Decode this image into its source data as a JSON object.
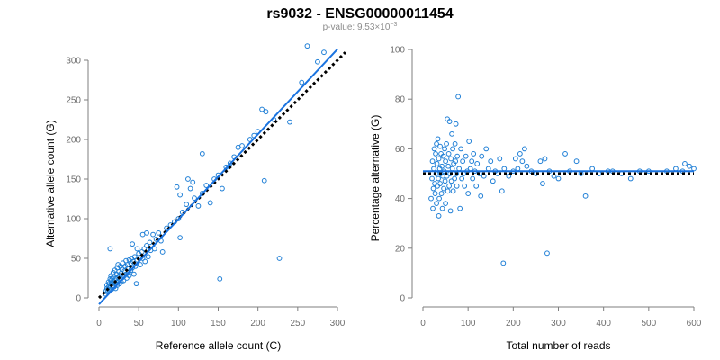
{
  "figure": {
    "title": "rs9032 - ENSG00000011454",
    "pvalue_prefix": "p-value: 9.53×10",
    "pvalue_exponent": "−3"
  },
  "colors": {
    "points": "#1f7fd6",
    "fit": "#1a73e0",
    "reference": "#000000",
    "axes": "#7f7f7f",
    "ticks": "#6e6e6e"
  },
  "chart_data": [
    {
      "type": "scatter",
      "title": "",
      "xlabel": "Reference allele count (C)",
      "ylabel": "Alternative allele count (G)",
      "xlim": [
        0,
        300
      ],
      "ylim": [
        0,
        300
      ],
      "xticks": [
        0,
        50,
        100,
        150,
        200,
        250,
        300
      ],
      "yticks": [
        0,
        50,
        100,
        150,
        200,
        250,
        300
      ],
      "grid": false,
      "points": [
        [
          8,
          5
        ],
        [
          9,
          9
        ],
        [
          10,
          12
        ],
        [
          10,
          16
        ],
        [
          11,
          7
        ],
        [
          12,
          14
        ],
        [
          12,
          20
        ],
        [
          13,
          10
        ],
        [
          13,
          18
        ],
        [
          14,
          24
        ],
        [
          14,
          13
        ],
        [
          15,
          17
        ],
        [
          15,
          22
        ],
        [
          15,
          28
        ],
        [
          16,
          11
        ],
        [
          16,
          19
        ],
        [
          17,
          25
        ],
        [
          17,
          15
        ],
        [
          18,
          32
        ],
        [
          18,
          21
        ],
        [
          19,
          14
        ],
        [
          19,
          27
        ],
        [
          20,
          18
        ],
        [
          20,
          35
        ],
        [
          21,
          24
        ],
        [
          21,
          12
        ],
        [
          22,
          30
        ],
        [
          22,
          20
        ],
        [
          23,
          38
        ],
        [
          23,
          16
        ],
        [
          24,
          26
        ],
        [
          24,
          42
        ],
        [
          25,
          22
        ],
        [
          25,
          33
        ],
        [
          26,
          18
        ],
        [
          26,
          28
        ],
        [
          27,
          40
        ],
        [
          27,
          24
        ],
        [
          28,
          31
        ],
        [
          28,
          20
        ],
        [
          29,
          36
        ],
        [
          30,
          26
        ],
        [
          30,
          44
        ],
        [
          31,
          22
        ],
        [
          32,
          34
        ],
        [
          32,
          28
        ],
        [
          33,
          40
        ],
        [
          34,
          30
        ],
        [
          34,
          47
        ],
        [
          35,
          25
        ],
        [
          36,
          37
        ],
        [
          36,
          42
        ],
        [
          37,
          32
        ],
        [
          38,
          48
        ],
        [
          38,
          28
        ],
        [
          40,
          35
        ],
        [
          40,
          44
        ],
        [
          41,
          50
        ],
        [
          42,
          38
        ],
        [
          43,
          46
        ],
        [
          44,
          30
        ],
        [
          45,
          52
        ],
        [
          46,
          40
        ],
        [
          47,
          18
        ],
        [
          48,
          48
        ],
        [
          50,
          56
        ],
        [
          52,
          42
        ],
        [
          54,
          58
        ],
        [
          55,
          50
        ],
        [
          57,
          62
        ],
        [
          58,
          46
        ],
        [
          60,
          66
        ],
        [
          62,
          52
        ],
        [
          64,
          70
        ],
        [
          65,
          60
        ],
        [
          68,
          80
        ],
        [
          70,
          62
        ],
        [
          72,
          74
        ],
        [
          75,
          82
        ],
        [
          78,
          72
        ],
        [
          80,
          58
        ],
        [
          85,
          88
        ],
        [
          90,
          92
        ],
        [
          95,
          96
        ],
        [
          100,
          100
        ],
        [
          102,
          130
        ],
        [
          105,
          108
        ],
        [
          110,
          118
        ],
        [
          115,
          138
        ],
        [
          120,
          126
        ],
        [
          125,
          116
        ],
        [
          130,
          132
        ],
        [
          135,
          142
        ],
        [
          140,
          120
        ],
        [
          145,
          150
        ],
        [
          150,
          155
        ],
        [
          155,
          138
        ],
        [
          160,
          165
        ],
        [
          165,
          170
        ],
        [
          170,
          178
        ],
        [
          175,
          190
        ],
        [
          180,
          192
        ],
        [
          190,
          200
        ],
        [
          195,
          205
        ],
        [
          200,
          210
        ],
        [
          205,
          238
        ],
        [
          208,
          148
        ],
        [
          210,
          235
        ],
        [
          220,
          225
        ],
        [
          227,
          50
        ],
        [
          240,
          222
        ],
        [
          255,
          272
        ],
        [
          262,
          318
        ],
        [
          275,
          298
        ],
        [
          283,
          310
        ],
        [
          14,
          62
        ],
        [
          42,
          68
        ],
        [
          48,
          62
        ],
        [
          55,
          80
        ],
        [
          152,
          24
        ],
        [
          60,
          82
        ],
        [
          102,
          76
        ],
        [
          98,
          140
        ],
        [
          112,
          150
        ],
        [
          130,
          182
        ],
        [
          118,
          146
        ]
      ],
      "fit_line": {
        "x": [
          0,
          300
        ],
        "y": [
          -8,
          314
        ]
      },
      "reference_line": {
        "x": [
          0,
          310
        ],
        "y": [
          0,
          310
        ]
      }
    },
    {
      "type": "scatter",
      "title": "",
      "xlabel": "Total number of reads",
      "ylabel": "Percentage alternative (G)",
      "xlim": [
        0,
        600
      ],
      "ylim": [
        0,
        100
      ],
      "xticks": [
        0,
        100,
        200,
        300,
        400,
        500,
        600
      ],
      "yticks": [
        0,
        20,
        40,
        60,
        80,
        100
      ],
      "grid": false,
      "points": [
        [
          18,
          40
        ],
        [
          20,
          48
        ],
        [
          21,
          55
        ],
        [
          22,
          36
        ],
        [
          23,
          44
        ],
        [
          24,
          52
        ],
        [
          25,
          60
        ],
        [
          26,
          46
        ],
        [
          27,
          42
        ],
        [
          28,
          58
        ],
        [
          29,
          50
        ],
        [
          30,
          38
        ],
        [
          30,
          62
        ],
        [
          31,
          54
        ],
        [
          32,
          45
        ],
        [
          33,
          64
        ],
        [
          34,
          48
        ],
        [
          35,
          33
        ],
        [
          35,
          56
        ],
        [
          36,
          40
        ],
        [
          37,
          52
        ],
        [
          38,
          61
        ],
        [
          38,
          46
        ],
        [
          39,
          50
        ],
        [
          40,
          58
        ],
        [
          41,
          42
        ],
        [
          42,
          53
        ],
        [
          43,
          36
        ],
        [
          44,
          49
        ],
        [
          45,
          57
        ],
        [
          46,
          44
        ],
        [
          47,
          51
        ],
        [
          48,
          60
        ],
        [
          49,
          47
        ],
        [
          50,
          38
        ],
        [
          50,
          55
        ],
        [
          52,
          62
        ],
        [
          53,
          49
        ],
        [
          54,
          72
        ],
        [
          55,
          43
        ],
        [
          56,
          53
        ],
        [
          57,
          58
        ],
        [
          58,
          45
        ],
        [
          59,
          71
        ],
        [
          60,
          50
        ],
        [
          61,
          35
        ],
        [
          62,
          56
        ],
        [
          63,
          47
        ],
        [
          64,
          66
        ],
        [
          65,
          52
        ],
        [
          66,
          60
        ],
        [
          67,
          43
        ],
        [
          68,
          54
        ],
        [
          70,
          48
        ],
        [
          71,
          62
        ],
        [
          72,
          55
        ],
        [
          73,
          70
        ],
        [
          74,
          50
        ],
        [
          75,
          45
        ],
        [
          76,
          57
        ],
        [
          78,
          81
        ],
        [
          80,
          52
        ],
        [
          82,
          36
        ],
        [
          84,
          60
        ],
        [
          86,
          48
        ],
        [
          88,
          55
        ],
        [
          90,
          50
        ],
        [
          92,
          45
        ],
        [
          95,
          57
        ],
        [
          98,
          51
        ],
        [
          100,
          42
        ],
        [
          102,
          63
        ],
        [
          105,
          52
        ],
        [
          108,
          55
        ],
        [
          110,
          48
        ],
        [
          112,
          58
        ],
        [
          115,
          51
        ],
        [
          118,
          45
        ],
        [
          120,
          54
        ],
        [
          125,
          50
        ],
        [
          128,
          41
        ],
        [
          130,
          57
        ],
        [
          135,
          49
        ],
        [
          140,
          60
        ],
        [
          145,
          52
        ],
        [
          150,
          55
        ],
        [
          155,
          47
        ],
        [
          160,
          51
        ],
        [
          165,
          50
        ],
        [
          170,
          56
        ],
        [
          175,
          43
        ],
        [
          178,
          14
        ],
        [
          180,
          52
        ],
        [
          190,
          49
        ],
        [
          200,
          51
        ],
        [
          205,
          56
        ],
        [
          210,
          52
        ],
        [
          215,
          58
        ],
        [
          220,
          55
        ],
        [
          225,
          60
        ],
        [
          230,
          53
        ],
        [
          240,
          51
        ],
        [
          250,
          50
        ],
        [
          260,
          55
        ],
        [
          265,
          46
        ],
        [
          270,
          56
        ],
        [
          275,
          18
        ],
        [
          280,
          51
        ],
        [
          290,
          49
        ],
        [
          300,
          48
        ],
        [
          315,
          58
        ],
        [
          325,
          51
        ],
        [
          340,
          55
        ],
        [
          350,
          50
        ],
        [
          360,
          41
        ],
        [
          375,
          52
        ],
        [
          390,
          50
        ],
        [
          410,
          51
        ],
        [
          420,
          51
        ],
        [
          440,
          50
        ],
        [
          460,
          48
        ],
        [
          480,
          51
        ],
        [
          500,
          51
        ],
        [
          540,
          51
        ],
        [
          560,
          52
        ],
        [
          575,
          51
        ],
        [
          580,
          54
        ],
        [
          590,
          53
        ],
        [
          600,
          52
        ]
      ],
      "fit_line": {
        "x": [
          0,
          600
        ],
        "y": [
          51,
          51
        ]
      },
      "reference_line": {
        "x": [
          0,
          600
        ],
        "y": [
          50,
          50
        ]
      }
    }
  ]
}
